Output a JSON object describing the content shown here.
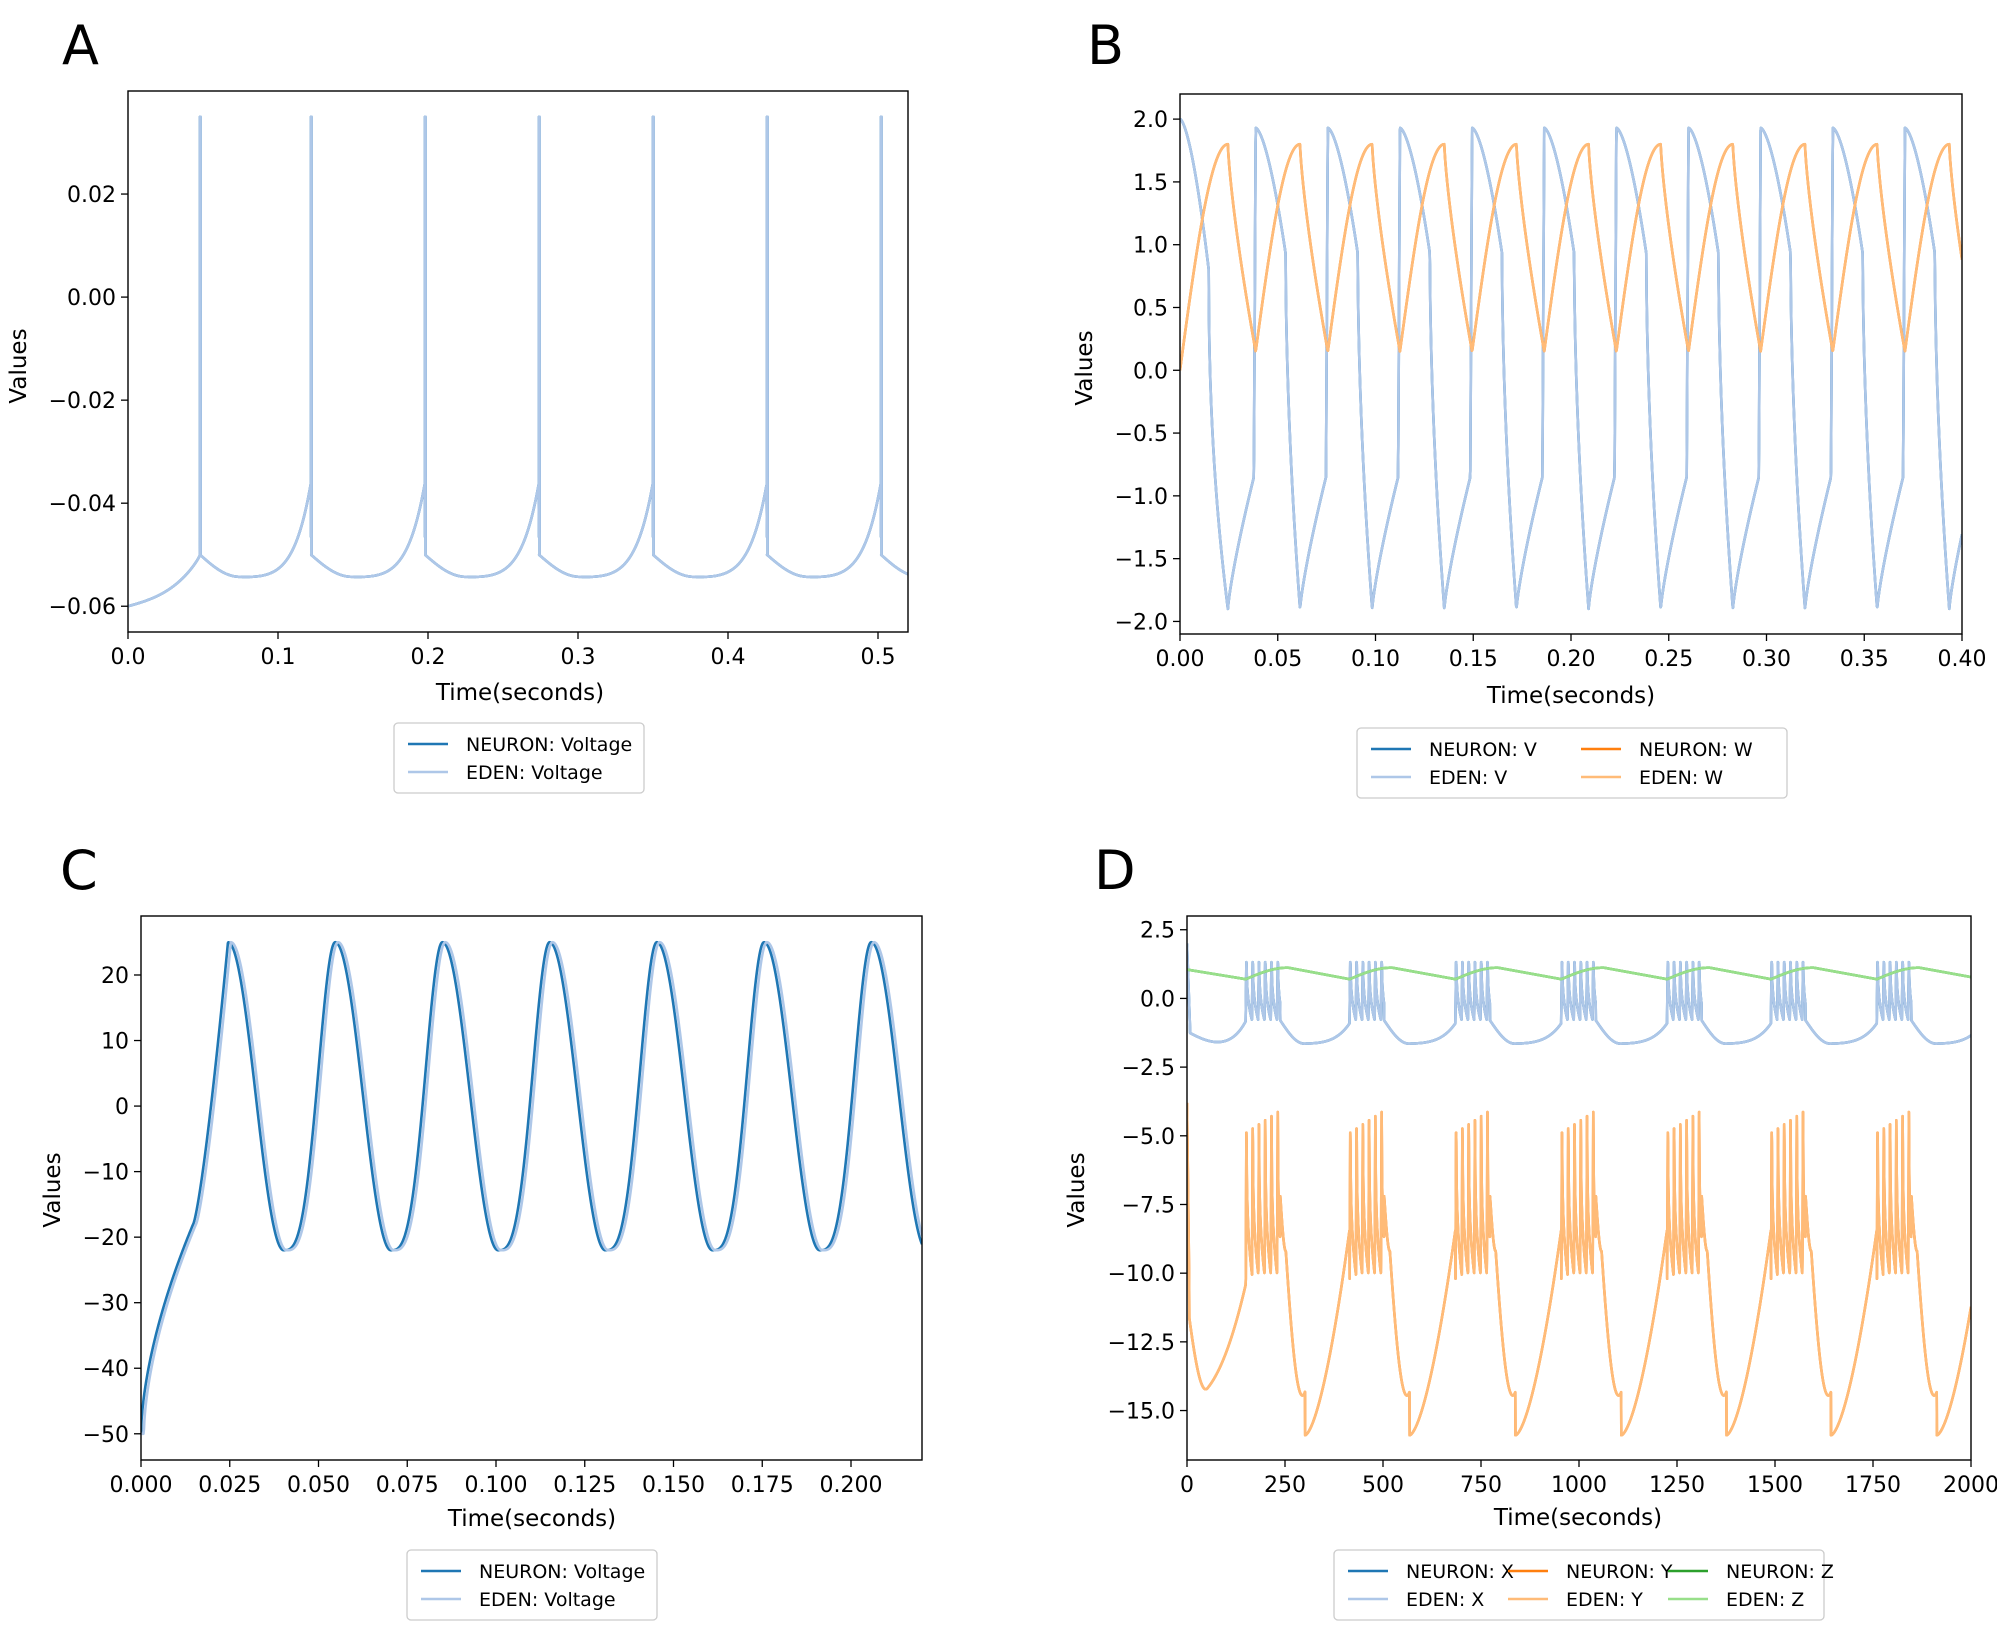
{
  "colors": {
    "neuron_blue": "#1f77b4",
    "eden_blue": "#aec7e8",
    "neuron_orange": "#ff7f0e",
    "eden_orange": "#ffbb78",
    "neuron_green": "#2ca02c",
    "eden_green": "#98df8a"
  },
  "chart_data": [
    {
      "panel": "A",
      "type": "line",
      "xlabel": "Time(seconds)",
      "ylabel": "Values",
      "xlim": [
        0.0,
        0.52
      ],
      "ylim": [
        -0.065,
        0.04
      ],
      "xticks": [
        0.0,
        0.1,
        0.2,
        0.3,
        0.4,
        0.5
      ],
      "xtick_labels": [
        "0.0",
        "0.1",
        "0.2",
        "0.3",
        "0.4",
        "0.5"
      ],
      "yticks": [
        -0.06,
        -0.04,
        -0.02,
        0.0,
        0.02
      ],
      "ytick_labels": [
        "−0.06",
        "−0.04",
        "−0.02",
        "0.00",
        "0.02"
      ],
      "legend": {
        "position": "below",
        "columns": 1,
        "entries": [
          "NEURON: Voltage",
          "EDEN: Voltage"
        ]
      },
      "series": [
        {
          "name": "NEURON: Voltage",
          "color": "neuron_blue",
          "model": "lif",
          "start": -0.06,
          "reset": -0.05,
          "spike_peak": 0.035,
          "trough": -0.0535,
          "spike_times": [
            0.048,
            0.122,
            0.198,
            0.274,
            0.35,
            0.426,
            0.502
          ]
        },
        {
          "name": "EDEN: Voltage",
          "color": "eden_blue",
          "model": "lif",
          "start": -0.06,
          "reset": -0.05,
          "spike_peak": 0.035,
          "trough": -0.0535,
          "spike_times": [
            0.048,
            0.122,
            0.198,
            0.274,
            0.35,
            0.426,
            0.502
          ]
        }
      ]
    },
    {
      "panel": "B",
      "type": "line",
      "xlabel": "Time(seconds)",
      "ylabel": "Values",
      "xlim": [
        0.0,
        0.4
      ],
      "ylim": [
        -2.1,
        2.2
      ],
      "xticks": [
        0.0,
        0.05,
        0.1,
        0.15,
        0.2,
        0.25,
        0.3,
        0.35,
        0.4
      ],
      "xtick_labels": [
        "0.00",
        "0.05",
        "0.10",
        "0.15",
        "0.20",
        "0.25",
        "0.30",
        "0.35",
        "0.40"
      ],
      "yticks": [
        -2.0,
        -1.5,
        -1.0,
        -0.5,
        0.0,
        0.5,
        1.0,
        1.5,
        2.0
      ],
      "ytick_labels": [
        "−2.0",
        "−1.5",
        "−1.0",
        "−0.5",
        "0.0",
        "0.5",
        "1.0",
        "1.5",
        "2.0"
      ],
      "legend": {
        "position": "below",
        "columns": 2,
        "entries": [
          "NEURON: V",
          "EDEN: V",
          "NEURON: W",
          "EDEN: W"
        ]
      },
      "series": [
        {
          "name": "NEURON: V",
          "color": "neuron_blue",
          "model": "fhn_v",
          "period": 0.0369,
          "max": 1.93,
          "min": -1.9
        },
        {
          "name": "EDEN: V",
          "color": "eden_blue",
          "model": "fhn_v",
          "period": 0.0369,
          "max": 1.93,
          "min": -1.9
        },
        {
          "name": "NEURON: W",
          "color": "neuron_orange",
          "model": "fhn_w",
          "period": 0.0369,
          "max": 1.8,
          "min": 0.15
        },
        {
          "name": "EDEN: W",
          "color": "eden_orange",
          "model": "fhn_w",
          "period": 0.0369,
          "max": 1.8,
          "min": 0.15
        }
      ]
    },
    {
      "panel": "C",
      "type": "line",
      "xlabel": "Time(seconds)",
      "ylabel": "Values",
      "xlim": [
        0.0,
        0.22
      ],
      "ylim": [
        -54,
        29
      ],
      "xticks": [
        0.0,
        0.025,
        0.05,
        0.075,
        0.1,
        0.125,
        0.15,
        0.175,
        0.2
      ],
      "xtick_labels": [
        "0.000",
        "0.025",
        "0.050",
        "0.075",
        "0.100",
        "0.125",
        "0.150",
        "0.175",
        "0.200"
      ],
      "yticks": [
        -50,
        -40,
        -30,
        -20,
        -10,
        0,
        10,
        20
      ],
      "ytick_labels": [
        "−50",
        "−40",
        "−30",
        "−20",
        "−10",
        "0",
        "10",
        "20"
      ],
      "legend": {
        "position": "below",
        "columns": 1,
        "entries": [
          "NEURON: Voltage",
          "EDEN: Voltage"
        ]
      },
      "series": [
        {
          "name": "NEURON: Voltage",
          "color": "neuron_blue",
          "model": "ml",
          "start": -50,
          "peak": 25,
          "trough": -22,
          "first_peak": 0.0245,
          "period": 0.0302,
          "shift": 0.0
        },
        {
          "name": "EDEN: Voltage",
          "color": "eden_blue",
          "model": "ml",
          "start": -50,
          "peak": 25,
          "trough": -22,
          "first_peak": 0.0245,
          "period": 0.0302,
          "shift": 0.0008
        }
      ]
    },
    {
      "panel": "D",
      "type": "line",
      "xlabel": "Time(seconds)",
      "ylabel": "Values",
      "xlim": [
        0,
        2000
      ],
      "ylim": [
        -16.8,
        3.0
      ],
      "xticks": [
        0,
        250,
        500,
        750,
        1000,
        1250,
        1500,
        1750,
        2000
      ],
      "xtick_labels": [
        "0",
        "250",
        "500",
        "750",
        "1000",
        "1250",
        "1500",
        "1750",
        "2000"
      ],
      "yticks": [
        -15.0,
        -12.5,
        -10.0,
        -7.5,
        -5.0,
        -2.5,
        0.0,
        2.5
      ],
      "ytick_labels": [
        "−15.0",
        "−12.5",
        "−10.0",
        "−7.5",
        "−5.0",
        "−2.5",
        "0.0",
        "2.5"
      ],
      "legend": {
        "position": "below",
        "columns": 3,
        "entries": [
          "NEURON: X",
          "EDEN: X",
          "NEURON: Y",
          "EDEN: Y",
          "NEURON: Z",
          "EDEN: Z"
        ]
      },
      "series": [
        {
          "name": "NEURON: X",
          "color": "neuron_blue",
          "model": "hr_x",
          "burst_starts": [
            150,
            415,
            685,
            955,
            1225,
            1490,
            1760
          ],
          "spikes_per_burst": 6,
          "isi": 16,
          "period": 270
        },
        {
          "name": "EDEN: X",
          "color": "eden_blue",
          "model": "hr_x",
          "burst_starts": [
            150,
            415,
            685,
            955,
            1225,
            1490,
            1760
          ],
          "spikes_per_burst": 6,
          "isi": 16,
          "period": 270
        },
        {
          "name": "NEURON: Y",
          "color": "neuron_orange",
          "model": "hr_y",
          "burst_starts": [
            150,
            415,
            685,
            955,
            1225,
            1490,
            1760
          ],
          "spikes_per_burst": 6,
          "isi": 16,
          "period": 270
        },
        {
          "name": "EDEN: Y",
          "color": "eden_orange",
          "model": "hr_y",
          "burst_starts": [
            150,
            415,
            685,
            955,
            1225,
            1490,
            1760
          ],
          "spikes_per_burst": 6,
          "isi": 16,
          "period": 270
        },
        {
          "name": "NEURON: Z",
          "color": "neuron_green",
          "model": "hr_z",
          "burst_starts": [
            150,
            415,
            685,
            955,
            1225,
            1490,
            1760
          ],
          "spikes_per_burst": 6,
          "isi": 16,
          "period": 270
        },
        {
          "name": "EDEN: Z",
          "color": "eden_green",
          "model": "hr_z",
          "burst_starts": [
            150,
            415,
            685,
            955,
            1225,
            1490,
            1760
          ],
          "spikes_per_burst": 6,
          "isi": 16,
          "period": 270
        }
      ]
    }
  ]
}
